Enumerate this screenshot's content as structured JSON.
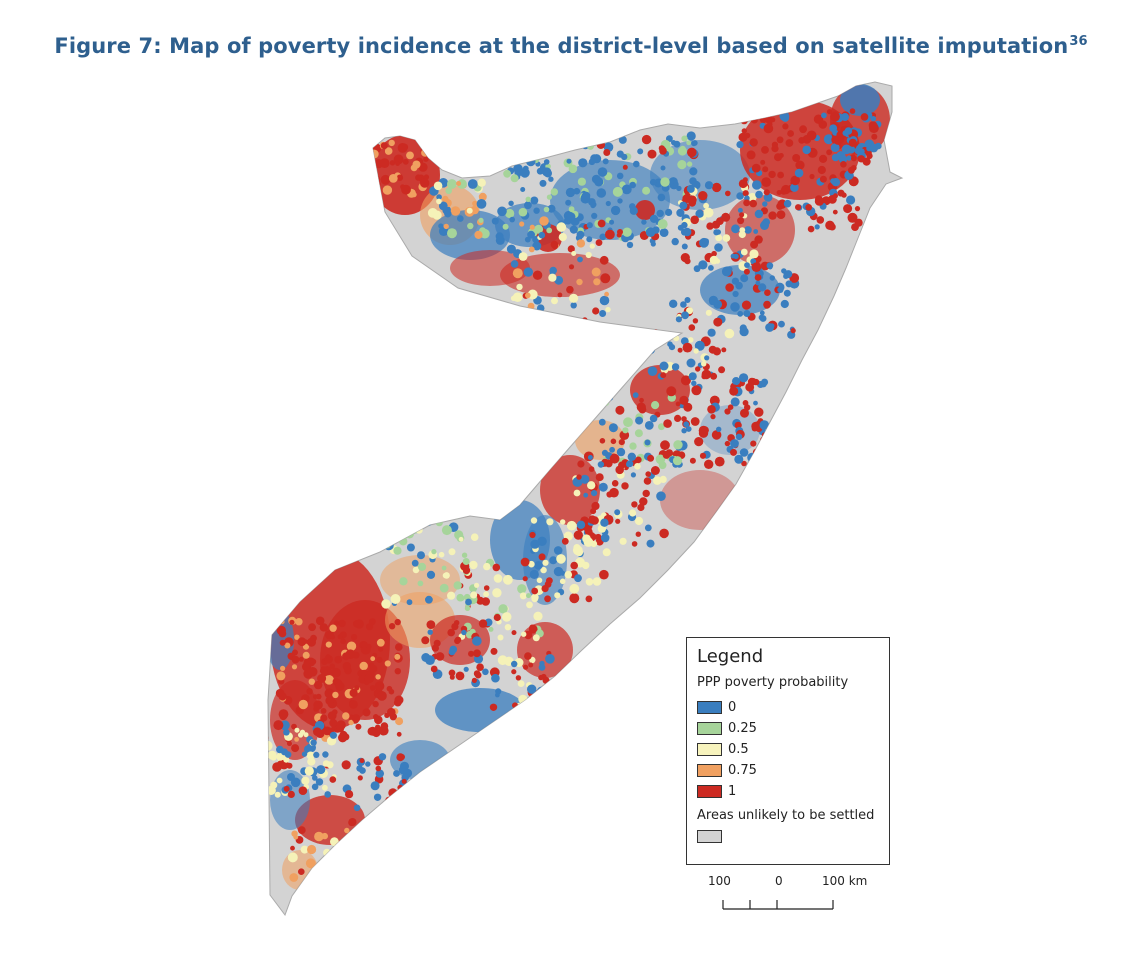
{
  "title": {
    "text": "Figure 7: Map of poverty incidence at the district-level based on satellite imputation",
    "footnote": "36"
  },
  "map": {
    "colors": {
      "unsettled": "#cfcfcf",
      "p0": "#3a7ebf",
      "p025": "#a6d49a",
      "p05": "#f5f2b8",
      "p075": "#f0a060",
      "p1": "#cc2a22"
    },
    "land_color": "#d3d3d3",
    "outline_color": "#aaaaaa"
  },
  "legend": {
    "title": "Legend",
    "subtitle": "PPP poverty probability",
    "items": [
      {
        "label": "0",
        "color": "#3a7ebf"
      },
      {
        "label": "0.25",
        "color": "#a6d49a"
      },
      {
        "label": "0.5",
        "color": "#f7f3bd"
      },
      {
        "label": "0.75",
        "color": "#f0a060"
      },
      {
        "label": "1",
        "color": "#cc2a22"
      }
    ],
    "unsettled_label": "Areas unlikely to be settled",
    "unsettled_color": "#d3d3d3"
  },
  "scale": {
    "left_label": "100",
    "mid_label": "0",
    "right_label": "100 km"
  }
}
